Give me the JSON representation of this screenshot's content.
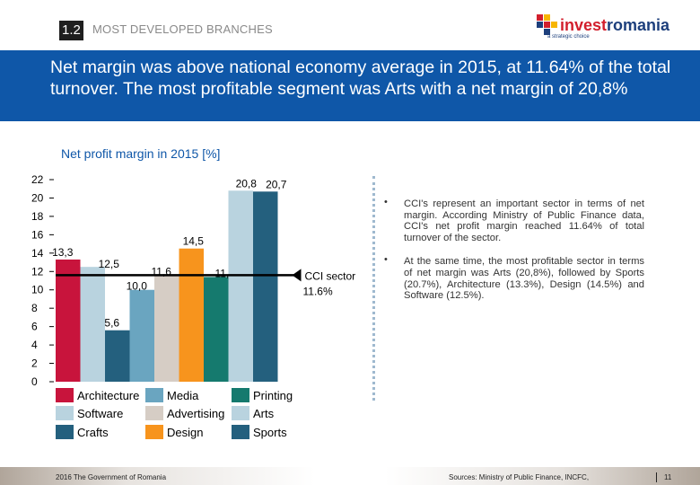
{
  "header": {
    "section_number": "1.2",
    "section_title": "MOST DEVELOPED BRANCHES",
    "logo_prefix": "invest",
    "logo_suffix": "romania",
    "logo_tagline": "a strategic choice"
  },
  "banner": {
    "text": "Net margin  was above national economy average in 2015, at 11.64% of the total turnover. The most profitable segment was Arts with a net margin of 20,8%"
  },
  "chart_data": {
    "type": "bar",
    "title": "Net profit margin in 2015 [%]",
    "ylim": [
      0,
      22
    ],
    "yticks": [
      "0",
      "2",
      "4",
      "6",
      "8",
      "10",
      "12",
      "14",
      "16",
      "18",
      "20",
      "22"
    ],
    "categories": [
      "Architecture",
      "Software",
      "Crafts",
      "Media",
      "Advertising",
      "Design",
      "Printing",
      "Arts",
      "Sports"
    ],
    "values": [
      13.3,
      12.5,
      5.6,
      10.0,
      11.6,
      14.5,
      11.4,
      20.8,
      20.7
    ],
    "data_labels": [
      "13,3",
      "12,5",
      "5,6",
      "10,0",
      "11,6",
      "14,5",
      "11,4",
      "20,8",
      "20,7"
    ],
    "colors": [
      "#c8143c",
      "#b9d3df",
      "#24607e",
      "#6aa5c0",
      "#d6cdc5",
      "#f7941d",
      "#157a6e",
      "#b9d3df",
      "#24607e"
    ],
    "reference_line": {
      "value": 11.6,
      "label_line1": "CCI sector",
      "label_line2": "11.6%"
    },
    "legend": [
      {
        "name": "Architecture",
        "color": "#c8143c"
      },
      {
        "name": "Media",
        "color": "#6aa5c0"
      },
      {
        "name": "Printing",
        "color": "#157a6e"
      },
      {
        "name": "Software",
        "color": "#b9d3df"
      },
      {
        "name": "Advertising",
        "color": "#d6cdc5"
      },
      {
        "name": "Arts",
        "color": "#b9d3df"
      },
      {
        "name": "Crafts",
        "color": "#24607e"
      },
      {
        "name": "Design",
        "color": "#f7941d"
      },
      {
        "name": "Sports",
        "color": "#24607e"
      }
    ],
    "grid": false,
    "legend_position": "bottom"
  },
  "notes": [
    "CCI's represent an important sector in terms of net margin. According Ministry of Public Finance data, CCI's  net profit margin reached 11.64% of total turnover of the sector.",
    "At the same time, the most profitable sector in terms of net margin was Arts (20,8%), followed by Sports (20.7%), Architecture (13.3%), Design (14.5%) and Software (12.5%)."
  ],
  "footer": {
    "left": "2016 The Government of Romania",
    "sources": "Sources: Ministry of Public Finance, INCFC,",
    "page": "11"
  }
}
